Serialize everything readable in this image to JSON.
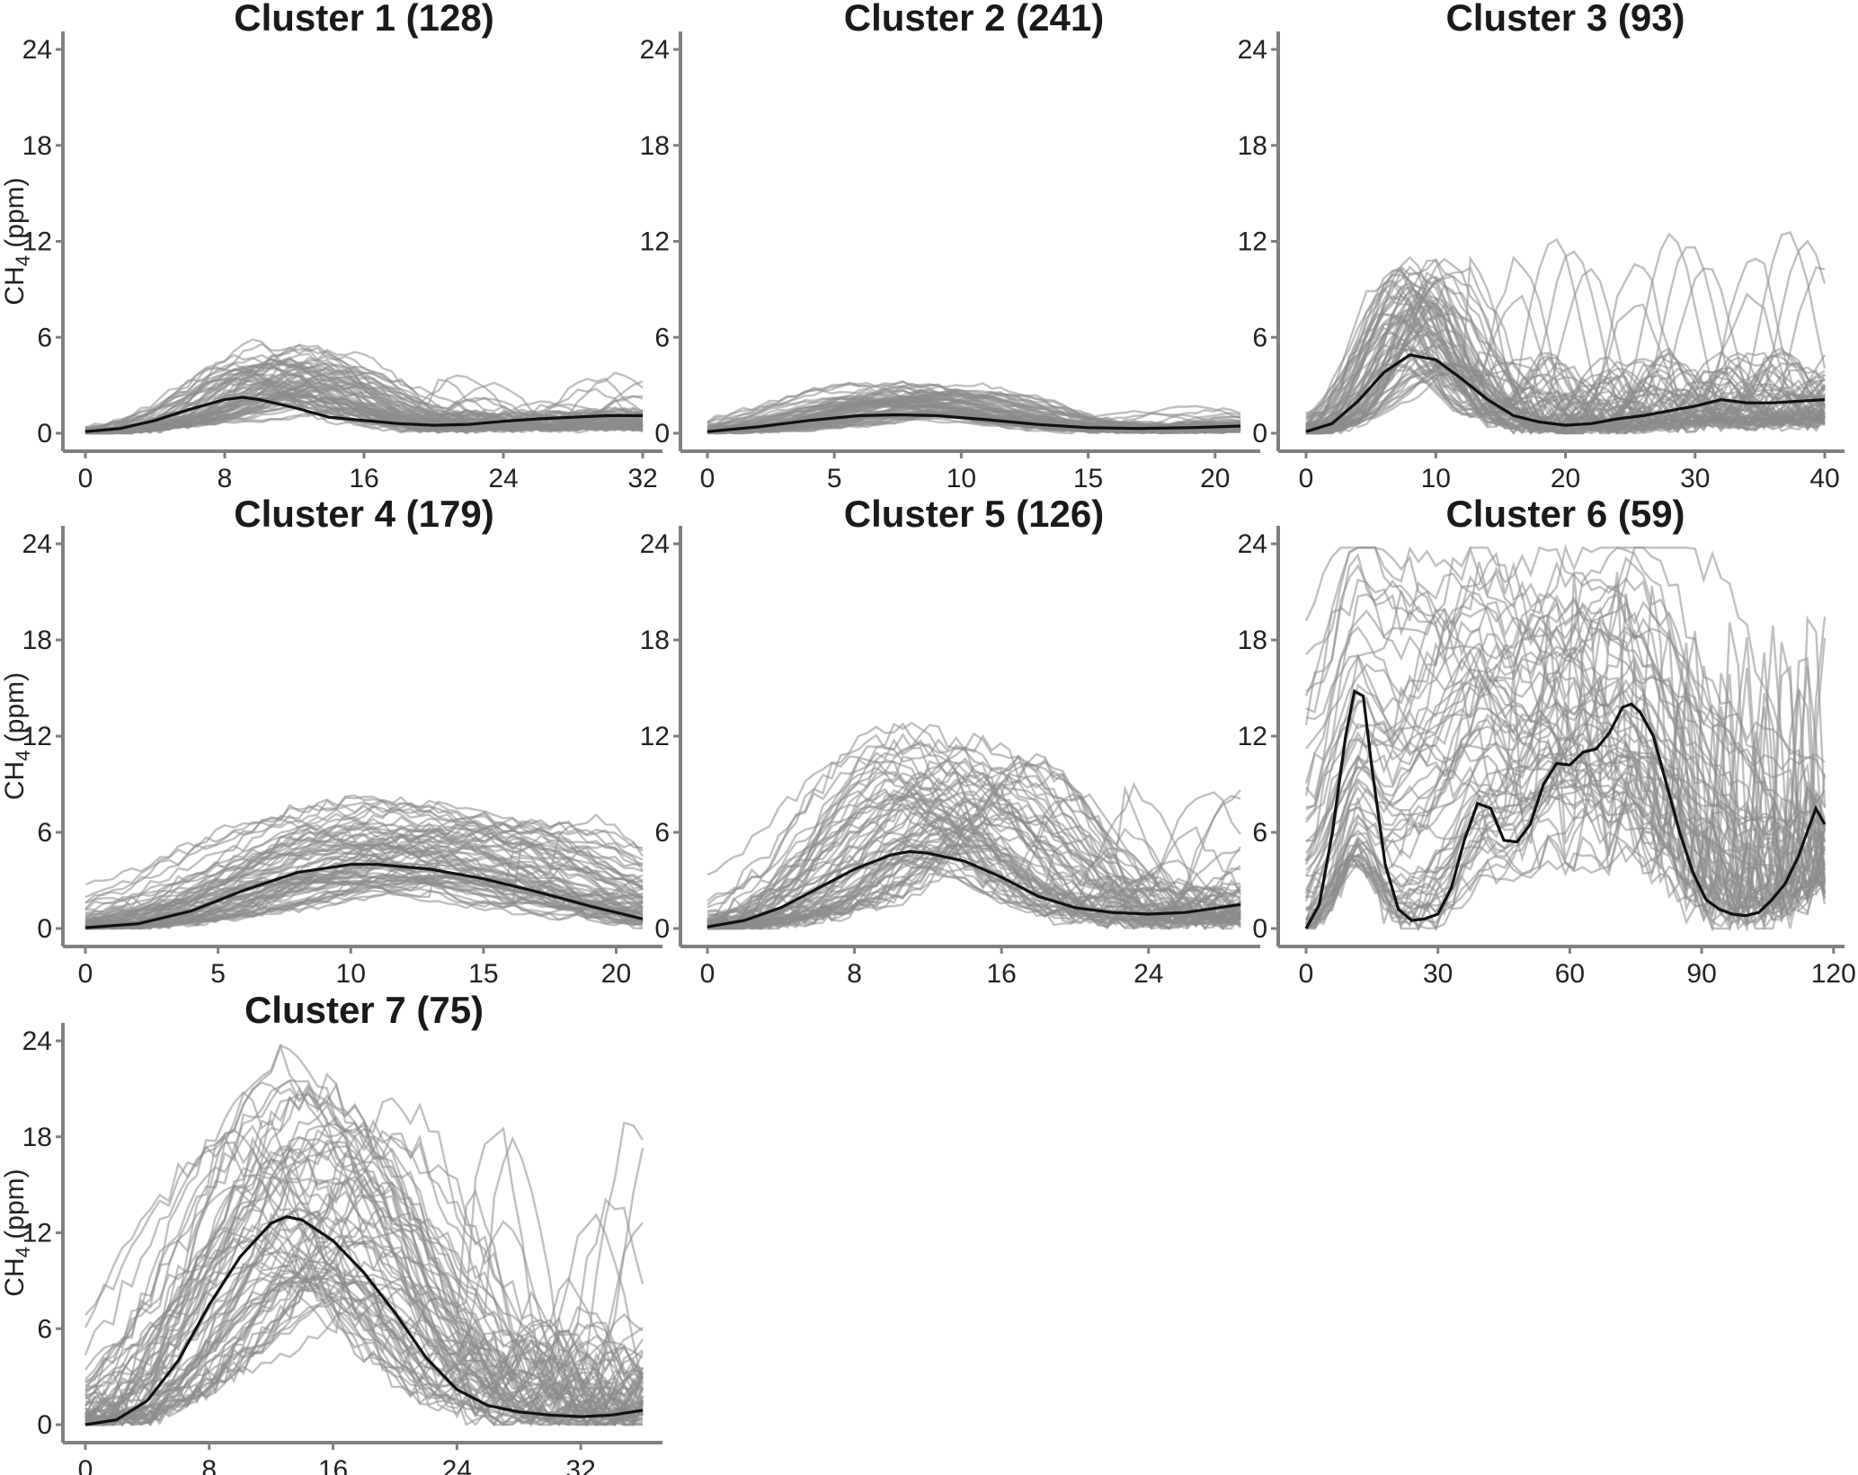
{
  "figure": {
    "ylabel_main": "CH",
    "ylabel_sub": "4",
    "ylabel_unit": " (ppm)"
  },
  "colors": {
    "trace": "#8c8c8c",
    "mean": "#111111",
    "axis": "#808080"
  },
  "chart_data": [
    {
      "type": "line",
      "title": "Cluster 1 (128)",
      "ylabel": "CH4 (ppm)",
      "xlim": [
        0,
        32
      ],
      "ylim": [
        0,
        24
      ],
      "xticks": [
        0,
        8,
        16,
        24,
        32
      ],
      "yticks": [
        0,
        6,
        12,
        18,
        24
      ],
      "trace_count": 128,
      "mean": {
        "x": [
          0,
          2,
          4,
          6,
          8,
          9,
          10,
          12,
          14,
          16,
          18,
          20,
          22,
          24,
          26,
          28,
          30,
          32
        ],
        "y": [
          0.1,
          0.3,
          0.8,
          1.5,
          2.1,
          2.25,
          2.1,
          1.6,
          1.0,
          0.8,
          0.6,
          0.5,
          0.55,
          0.75,
          0.9,
          1.0,
          1.1,
          1.1
        ]
      },
      "envelope": {
        "rise_end": 6,
        "peak_start": 8,
        "peak_end": 16,
        "low_max": 5,
        "tail_max": 3.5
      }
    },
    {
      "type": "line",
      "title": "Cluster 2 (241)",
      "ylabel": "",
      "xlim": [
        0,
        21
      ],
      "ylim": [
        0,
        24
      ],
      "xticks": [
        0,
        5,
        10,
        15,
        20
      ],
      "yticks": [
        0,
        6,
        12,
        18,
        24
      ],
      "trace_count": 241,
      "mean": {
        "x": [
          0,
          2,
          4,
          6,
          7.5,
          9,
          11,
          13,
          15,
          17,
          19,
          21
        ],
        "y": [
          0.1,
          0.4,
          0.8,
          1.1,
          1.15,
          1.1,
          0.85,
          0.55,
          0.35,
          0.3,
          0.35,
          0.45
        ]
      },
      "envelope": {
        "rise_end": 4,
        "peak_start": 5,
        "peak_end": 12,
        "low_max": 2.8,
        "tail_max": 1.8
      }
    },
    {
      "type": "line",
      "title": "Cluster 3 (93)",
      "ylabel": "",
      "xlim": [
        0,
        40
      ],
      "ylim": [
        0,
        24
      ],
      "xticks": [
        0,
        10,
        20,
        30,
        40
      ],
      "yticks": [
        0,
        6,
        12,
        18,
        24
      ],
      "trace_count": 93,
      "mean": {
        "x": [
          0,
          2,
          4,
          6,
          8,
          10,
          12,
          14,
          16,
          18,
          20,
          22,
          24,
          26,
          28,
          30,
          32,
          34,
          36,
          38,
          40
        ],
        "y": [
          0.1,
          0.6,
          2.0,
          3.8,
          4.9,
          4.6,
          3.4,
          2.1,
          1.1,
          0.7,
          0.5,
          0.6,
          0.9,
          1.1,
          1.4,
          1.7,
          2.1,
          1.9,
          1.9,
          2.0,
          2.1
        ]
      },
      "envelope": {
        "rise_end": 5,
        "peak_start": 6,
        "peak_end": 12,
        "low_max": 9.5,
        "tail_max": 12.8
      }
    },
    {
      "type": "line",
      "title": "Cluster 4 (179)",
      "ylabel": "CH4 (ppm)",
      "xlim": [
        0,
        21
      ],
      "ylim": [
        0,
        24
      ],
      "xticks": [
        0,
        5,
        10,
        15,
        20
      ],
      "yticks": [
        0,
        6,
        12,
        18,
        24
      ],
      "trace_count": 179,
      "mean": {
        "x": [
          0,
          2,
          4,
          6,
          8,
          10,
          11,
          13,
          15,
          17,
          19,
          21
        ],
        "y": [
          0.05,
          0.3,
          1.1,
          2.4,
          3.5,
          4.0,
          4.0,
          3.7,
          3.1,
          2.3,
          1.4,
          0.6
        ]
      },
      "envelope": {
        "rise_end": 5,
        "peak_start": 6,
        "peak_end": 18,
        "low_max": 7,
        "tail_max": 6.6
      }
    },
    {
      "type": "line",
      "title": "Cluster 5 (126)",
      "ylabel": "",
      "xlim": [
        0,
        29
      ],
      "ylim": [
        0,
        24
      ],
      "xticks": [
        0,
        8,
        16,
        24
      ],
      "yticks": [
        0,
        6,
        12,
        18,
        24
      ],
      "trace_count": 126,
      "mean": {
        "x": [
          0,
          2,
          4,
          6,
          8,
          10,
          11,
          12,
          14,
          16,
          18,
          20,
          22,
          24,
          26,
          29
        ],
        "y": [
          0.1,
          0.5,
          1.3,
          2.5,
          3.7,
          4.6,
          4.8,
          4.7,
          4.2,
          3.2,
          2.0,
          1.3,
          1.0,
          0.9,
          1.0,
          1.5
        ]
      },
      "envelope": {
        "rise_end": 7,
        "peak_start": 8,
        "peak_end": 18,
        "low_max": 11.3,
        "tail_max": 9
      }
    },
    {
      "type": "line",
      "title": "Cluster 6 (59)",
      "ylabel": "",
      "xlim": [
        0,
        118
      ],
      "ylim": [
        0,
        24
      ],
      "xticks": [
        0,
        30,
        60,
        90,
        120
      ],
      "yticks": [
        0,
        6,
        12,
        18,
        24
      ],
      "trace_count": 59,
      "mean": {
        "x": [
          0,
          3,
          6,
          9,
          11,
          13,
          15,
          18,
          21,
          24,
          27,
          30,
          33,
          36,
          39,
          42,
          45,
          48,
          51,
          54,
          57,
          60,
          63,
          66,
          69,
          72,
          74,
          76,
          79,
          82,
          85,
          88,
          91,
          94,
          97,
          100,
          103,
          106,
          109,
          112,
          114,
          116,
          118
        ],
        "y": [
          0,
          1.5,
          6,
          12,
          14.8,
          14.5,
          10,
          4,
          1.2,
          0.5,
          0.6,
          0.9,
          2.5,
          5.5,
          7.8,
          7.5,
          5.5,
          5.4,
          6.5,
          9,
          10.3,
          10.2,
          11,
          11.2,
          12.2,
          13.8,
          14,
          13.5,
          12,
          9,
          6,
          3.5,
          1.8,
          1.2,
          0.9,
          0.8,
          1.0,
          1.8,
          2.8,
          4.5,
          6,
          7.5,
          6.5
        ]
      },
      "envelope": {
        "rise_end": 6,
        "peak_start": 8,
        "peak_end": 90,
        "low_max": 23.5,
        "tail_max": 21.5
      }
    },
    {
      "type": "line",
      "title": "Cluster 7 (75)",
      "ylabel": "CH4 (ppm)",
      "xlim": [
        0,
        36
      ],
      "ylim": [
        0,
        24
      ],
      "xticks": [
        0,
        8,
        16,
        24,
        32
      ],
      "yticks": [
        0,
        6,
        12,
        18,
        24
      ],
      "trace_count": 75,
      "mean": {
        "x": [
          0,
          2,
          4,
          6,
          8,
          10,
          12,
          13,
          14,
          16,
          18,
          20,
          22,
          24,
          26,
          28,
          30,
          32,
          34,
          36
        ],
        "y": [
          0,
          0.3,
          1.5,
          4,
          7.5,
          10.5,
          12.6,
          13.0,
          12.8,
          11.5,
          9.5,
          7.0,
          4.2,
          2.2,
          1.2,
          0.8,
          0.6,
          0.5,
          0.6,
          0.9
        ]
      },
      "envelope": {
        "rise_end": 7,
        "peak_start": 8,
        "peak_end": 22,
        "low_max": 19.2,
        "tail_max": 18.6
      }
    }
  ]
}
